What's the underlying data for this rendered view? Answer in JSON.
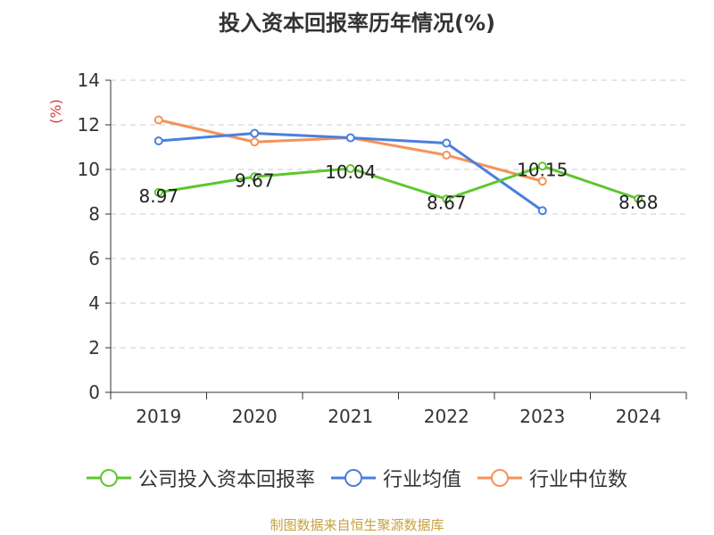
{
  "chart_data": {
    "type": "line",
    "title": "投入资本回报率历年情况(%)",
    "ylabel": "(%)",
    "xlabel": "",
    "categories": [
      "2019",
      "2020",
      "2021",
      "2022",
      "2023",
      "2024"
    ],
    "ylim": [
      0,
      14
    ],
    "yticks": [
      0,
      2,
      4,
      6,
      8,
      10,
      12,
      14
    ],
    "grid": true,
    "legend_position": "bottom",
    "series": [
      {
        "name": "公司投入资本回报率",
        "color": "#5cc72e",
        "values": [
          8.97,
          9.67,
          10.04,
          8.67,
          10.15,
          8.68
        ],
        "labels": [
          "8.97",
          "9.67",
          "10.04",
          "8.67",
          "10.15",
          "8.68"
        ],
        "show_labels": true
      },
      {
        "name": "行业均值",
        "color": "#4a7fdf",
        "values": [
          11.28,
          11.62,
          11.42,
          11.18,
          8.15,
          null
        ],
        "show_labels": false
      },
      {
        "name": "行业中位数",
        "color": "#f4935a",
        "values": [
          12.22,
          11.23,
          11.42,
          10.64,
          9.47,
          null
        ],
        "show_labels": false
      }
    ]
  },
  "source": "制图数据来自恒生聚源数据库"
}
